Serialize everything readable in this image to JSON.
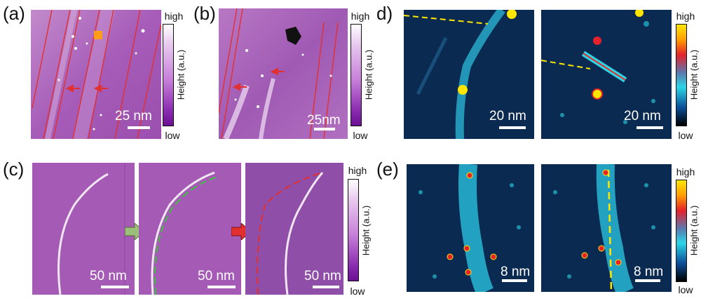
{
  "panels": {
    "a": {
      "label": "(a)",
      "scale": "25 nm"
    },
    "b": {
      "label": "(b)",
      "scale": "25nm"
    },
    "c": {
      "label": "(c)",
      "scales": [
        "50 nm",
        "50 nm",
        "50 nm"
      ]
    },
    "d": {
      "label": "d)",
      "scales": [
        "20 nm",
        "20 nm"
      ]
    },
    "e": {
      "label": "(e)",
      "scales": [
        "8 nm",
        "8 nm"
      ]
    }
  },
  "colorbar": {
    "high": "high",
    "low": "low",
    "axis": "Height (a.u.)"
  },
  "colors": {
    "purple_bg": "#a55bb5",
    "dark_blue_bg": "#0b2a52",
    "red_line": "#e23030",
    "green_dash": "#3cc23c",
    "yellow_marker": "#ffe600"
  }
}
